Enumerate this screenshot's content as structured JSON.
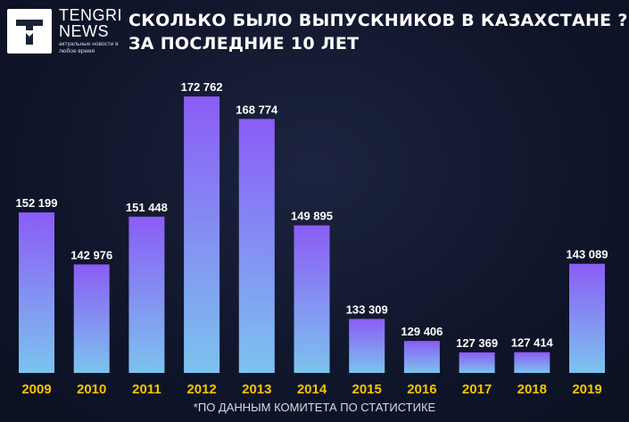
{
  "brand": {
    "name_line1": "TENGRI",
    "name_line2": "NEWS",
    "tagline": "актуальные новости в любое время"
  },
  "title": {
    "line1": "СКОЛЬКО БЫЛО ВЫПУСКНИКОВ В КАЗАХСТАНЕ ?",
    "line2": "ЗА ПОСЛЕДНИЕ 10 ЛЕТ"
  },
  "footnote": "*ПО ДАННЫМ КОМИТЕТА ПО СТАТИСТИКЕ",
  "colors": {
    "bar_top": "#8b5cf6",
    "bar_bottom": "#7cc3ee",
    "year_label": "#f5c400",
    "value_label": "#ffffff"
  },
  "chart_data": {
    "type": "bar",
    "categories": [
      "2009",
      "2010",
      "2011",
      "2012",
      "2013",
      "2014",
      "2015",
      "2016",
      "2017",
      "2018",
      "2019"
    ],
    "values": [
      152199,
      142976,
      151448,
      172762,
      168774,
      149895,
      133309,
      129406,
      127369,
      127414,
      143089
    ],
    "value_labels": [
      "152 199",
      "142 976",
      "151 448",
      "172 762",
      "168 774",
      "149 895",
      "133 309",
      "129 406",
      "127 369",
      "127 414",
      "143 089"
    ],
    "title": "СКОЛЬКО БЫЛО ВЫПУСКНИКОВ В КАЗАХСТАНЕ ? ЗА ПОСЛЕДНИЕ 10 ЛЕТ",
    "xlabel": "",
    "ylabel": "",
    "ylim": [
      125000,
      175000
    ],
    "grid": false,
    "legend": "none"
  }
}
